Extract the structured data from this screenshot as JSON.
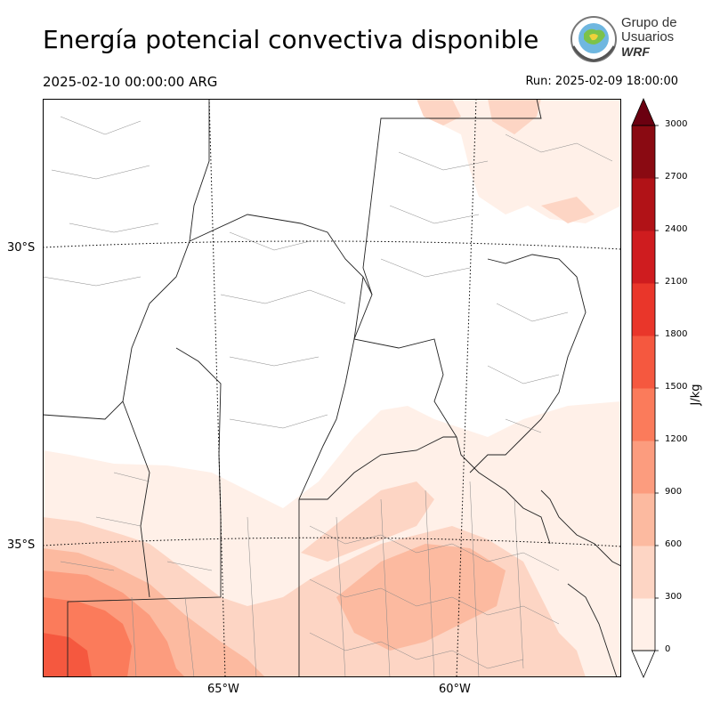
{
  "header": {
    "title": "Energía potencial convectiva disponible",
    "valid_time": "2025-02-10 00:00:00 ARG",
    "run_time": "Run: 2025-02-09 18:00:00"
  },
  "logo": {
    "line1": "Grupo de",
    "line2": "Usuarios",
    "line3": "WRF"
  },
  "map": {
    "lat_labels": [
      "30°S",
      "35°S"
    ],
    "lon_labels": [
      "65°W",
      "60°W"
    ]
  },
  "colorbar": {
    "unit": "J/kg",
    "ticks": [
      "0",
      "300",
      "600",
      "900",
      "1200",
      "1500",
      "1800",
      "2100",
      "2400",
      "2700",
      "3000"
    ],
    "colors": [
      "#fff0e8",
      "#fdd5c4",
      "#fcbaa0",
      "#fc9c7e",
      "#fb7b5b",
      "#f5583f",
      "#e9362a",
      "#cf1c1f",
      "#b11217",
      "#8a0a12"
    ],
    "over_color": "#6b0010"
  }
}
